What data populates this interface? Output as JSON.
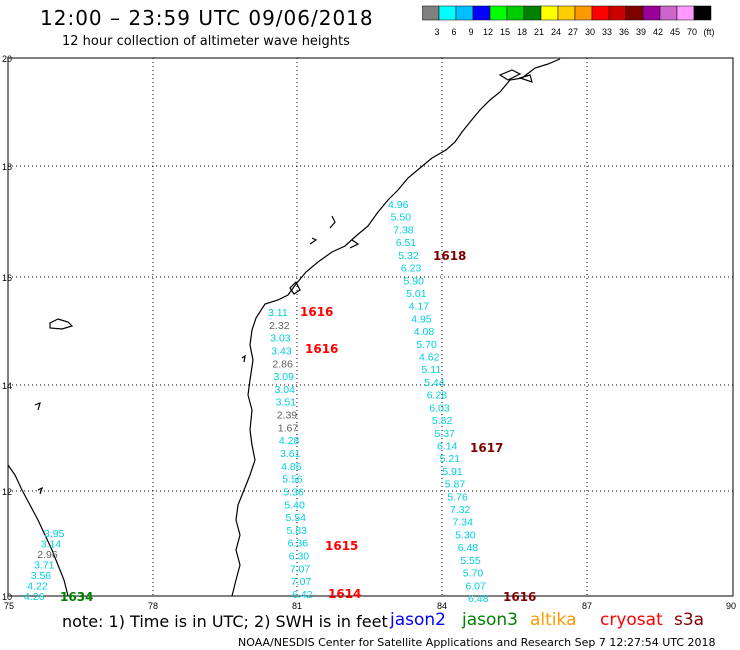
{
  "title": "12:00 – 23:59 UTC 09/06/2018",
  "subtitle": "12 hour collection of altimeter wave heights",
  "legend": {
    "colors": [
      "#808080",
      "#00ffff",
      "#00bfff",
      "#0000ff",
      "#00ff00",
      "#00cc00",
      "#008000",
      "#ffff00",
      "#ffcc00",
      "#ff9900",
      "#ff0000",
      "#cc0000",
      "#800000",
      "#990099",
      "#cc66cc",
      "#ff99ff",
      "#000000"
    ],
    "labels": [
      "3",
      "6",
      "9",
      "12",
      "15",
      "18",
      "21",
      "24",
      "27",
      "30",
      "33",
      "36",
      "39",
      "42",
      "45",
      "70",
      "(ft)"
    ]
  },
  "axes": {
    "lon_labels": [
      "75",
      "78",
      "81",
      "84",
      "87",
      "90"
    ],
    "lat_labels": [
      "20",
      "18",
      "16",
      "14",
      "12",
      "10"
    ]
  },
  "tracks": [
    {
      "sat": "s3a",
      "time_label": "1618",
      "values": [
        "4.96",
        "5.50",
        "7.38",
        "6.51",
        "5.32",
        "6.23",
        "5.90",
        "5.01",
        "4.17",
        "4.95",
        "4.08",
        "5.70",
        "4.62",
        "5.11",
        "5.44",
        "6.28",
        "6.03",
        "5.82",
        "5.37",
        "6.14",
        "5.21",
        "5.91",
        "5.87",
        "5.76",
        "7.32",
        "7.34",
        "5.30",
        "6.48",
        "5.55",
        "5.70",
        "6.07",
        "6.48"
      ],
      "time_label2": "1617",
      "time_label3": "1616"
    },
    {
      "sat": "cryosat",
      "time_label": "1616",
      "time_label_b": "1616",
      "time_label_c": "1615",
      "time_label_d": "1614",
      "values": [
        "3.11",
        "2.32",
        "3.03",
        "3.43",
        "2.86",
        "3.09",
        "3.04",
        "3.51",
        "2.39",
        "1.67",
        "4.28",
        "3.61",
        "4.86",
        "5.56",
        "5.36",
        "5.40",
        "5.54",
        "5.83",
        "6.36",
        "6.30",
        "7.07",
        "7.07",
        "6.42"
      ]
    },
    {
      "sat": "jason3",
      "time_label": "1634",
      "values": [
        "3.95",
        "3.14",
        "2.96",
        "3.71",
        "3.56",
        "4.22",
        "4.26"
      ]
    }
  ],
  "note": "note:  1) Time is in UTC;  2) SWH is in feet",
  "satellites": [
    {
      "name": "jason2",
      "color": "#0000ff"
    },
    {
      "name": "jason3",
      "color": "#008000"
    },
    {
      "name": "altika",
      "color": "#ff9900"
    },
    {
      "name": "cryosat",
      "color": "#ff0000"
    },
    {
      "name": "s3a",
      "color": "#800000"
    }
  ],
  "credit": "NOAA/NESDIS Center for Satellite Applications and Research    Sep  7 12:27:54 UTC 2018"
}
